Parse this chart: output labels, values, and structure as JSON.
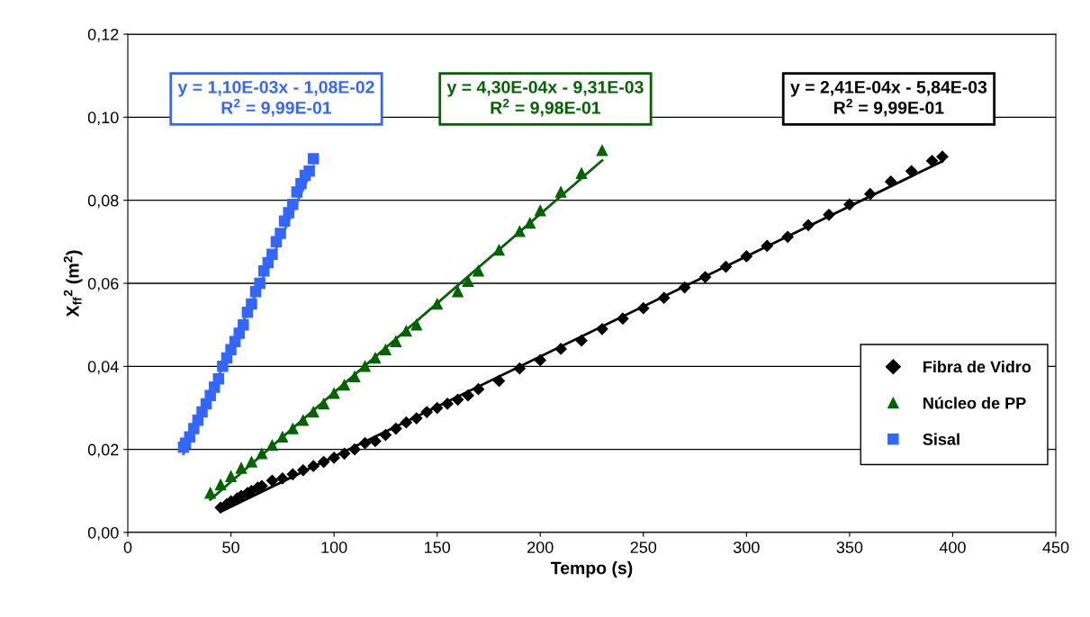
{
  "chart_data": {
    "type": "scatter",
    "xlabel": "Tempo (s)",
    "ylabel": "X$_{ff}$$^{2}$ (m$^{2}$)",
    "xlim": [
      0,
      450
    ],
    "xticks": [
      0,
      50,
      100,
      150,
      200,
      250,
      300,
      350,
      400,
      450
    ],
    "ylim": [
      0,
      0.12
    ],
    "yticks": [
      {
        "value": 0,
        "label": "0,00"
      },
      {
        "value": 0.02,
        "label": "0,02"
      },
      {
        "value": 0.04,
        "label": "0,04"
      },
      {
        "value": 0.06,
        "label": "0,06"
      },
      {
        "value": 0.08,
        "label": "0,08"
      },
      {
        "value": 0.1,
        "label": "0,10"
      },
      {
        "value": 0.12,
        "label": "0,12"
      }
    ],
    "grid": "y",
    "legend": "lower right",
    "series": [
      {
        "name": "Fibra de Vidro",
        "marker": "diamond",
        "color": "#000000",
        "x": [
          45,
          48,
          50,
          53,
          55,
          58,
          60,
          63,
          65,
          70,
          75,
          80,
          85,
          90,
          95,
          100,
          105,
          110,
          115,
          120,
          125,
          130,
          135,
          140,
          145,
          150,
          155,
          160,
          165,
          170,
          180,
          190,
          200,
          210,
          220,
          230,
          240,
          250,
          260,
          270,
          280,
          290,
          300,
          310,
          320,
          330,
          340,
          350,
          360,
          370,
          380,
          390,
          395
        ],
        "values": [
          0.006,
          0.0068,
          0.0075,
          0.0082,
          0.0088,
          0.0095,
          0.01,
          0.0108,
          0.0112,
          0.0125,
          0.013,
          0.014,
          0.015,
          0.016,
          0.017,
          0.018,
          0.019,
          0.02,
          0.0215,
          0.022,
          0.0235,
          0.025,
          0.0265,
          0.0275,
          0.029,
          0.03,
          0.031,
          0.032,
          0.033,
          0.0345,
          0.0365,
          0.0395,
          0.0415,
          0.0442,
          0.0462,
          0.049,
          0.0515,
          0.054,
          0.0565,
          0.059,
          0.0615,
          0.064,
          0.0665,
          0.069,
          0.0712,
          0.074,
          0.0765,
          0.079,
          0.0815,
          0.0845,
          0.087,
          0.0895,
          0.0905
        ]
      },
      {
        "name": "Núcleo de PP",
        "marker": "triangle",
        "color": "#006400",
        "x": [
          40,
          45,
          50,
          55,
          60,
          65,
          70,
          75,
          80,
          85,
          90,
          95,
          100,
          105,
          110,
          115,
          120,
          125,
          130,
          135,
          140,
          150,
          160,
          165,
          170,
          180,
          190,
          195,
          200,
          210,
          220,
          230
        ],
        "values": [
          0.0095,
          0.0115,
          0.0135,
          0.0155,
          0.017,
          0.019,
          0.021,
          0.023,
          0.025,
          0.027,
          0.029,
          0.031,
          0.0335,
          0.0355,
          0.0375,
          0.04,
          0.042,
          0.044,
          0.046,
          0.0485,
          0.05,
          0.055,
          0.058,
          0.0605,
          0.063,
          0.068,
          0.0725,
          0.0745,
          0.0775,
          0.082,
          0.0865,
          0.092
        ]
      },
      {
        "name": "Sisal",
        "marker": "square",
        "color": "#3366ff",
        "x": [
          27,
          28,
          30,
          32,
          34,
          36,
          38,
          40,
          42,
          44,
          46,
          48,
          50,
          52,
          54,
          56,
          58,
          60,
          62,
          64,
          66,
          68,
          70,
          72,
          74,
          76,
          78,
          80,
          82,
          84,
          86,
          88,
          90
        ],
        "values": [
          0.0205,
          0.0215,
          0.023,
          0.025,
          0.027,
          0.029,
          0.031,
          0.033,
          0.035,
          0.037,
          0.04,
          0.042,
          0.044,
          0.046,
          0.048,
          0.05,
          0.053,
          0.055,
          0.058,
          0.06,
          0.063,
          0.065,
          0.067,
          0.07,
          0.072,
          0.075,
          0.077,
          0.079,
          0.082,
          0.084,
          0.086,
          0.087,
          0.09
        ]
      },
      {
        "type": "line",
        "color": "#3366ff",
        "x": [
          27,
          90
        ],
        "values": [
          0.0189,
          0.0882
        ]
      },
      {
        "type": "line",
        "color": "#006400",
        "x": [
          40,
          230
        ],
        "values": [
          0.0079,
          0.0896
        ]
      },
      {
        "type": "line",
        "color": "#000000",
        "x": [
          45,
          395
        ],
        "values": [
          0.005,
          0.0894
        ]
      }
    ],
    "annotations": [
      "y = 1,10E-03x - 1,08E-02\nR$^{2}$ = 9,99E-01",
      "y = 4,30E-04x - 9,31E-03\nR$^{2}$ = 9,98E-01",
      "y = 2,41E-04x - 5,84E-03\nR$^{2}$ = 9,99E-01"
    ]
  }
}
